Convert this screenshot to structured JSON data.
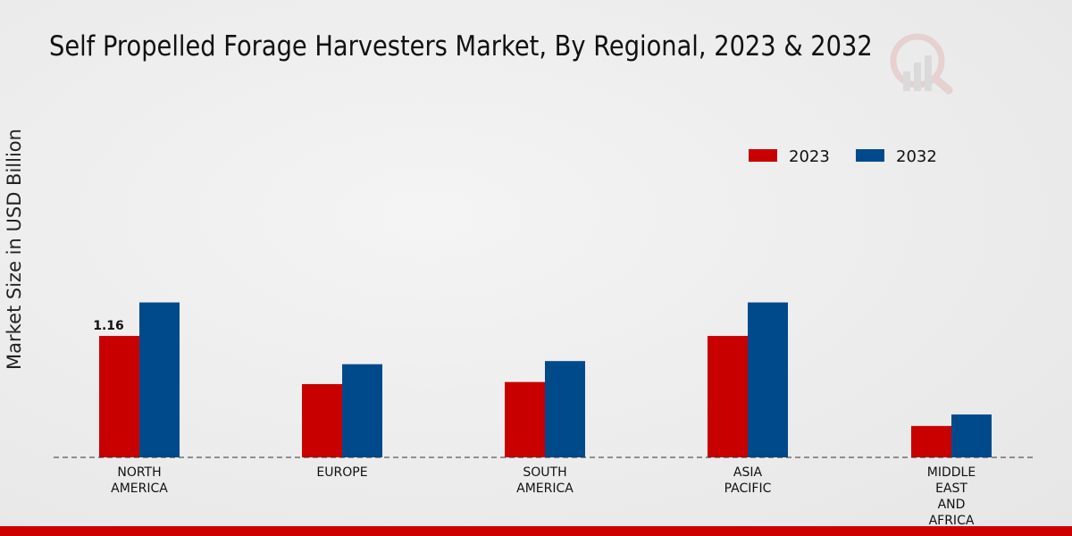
{
  "chart_data": {
    "type": "bar",
    "title": "Self Propelled Forage Harvesters Market, By Regional, 2023 & 2032",
    "xlabel": "",
    "ylabel": "Market Size in USD Billion",
    "categories": [
      [
        "NORTH",
        "AMERICA"
      ],
      [
        "EUROPE"
      ],
      [
        "SOUTH",
        "AMERICA"
      ],
      [
        "ASIA",
        "PACIFIC"
      ],
      [
        "MIDDLE",
        "EAST",
        "AND",
        "AFRICA"
      ]
    ],
    "series": [
      {
        "name": "2023",
        "color": "#c80000",
        "values": [
          1.16,
          0.7,
          0.72,
          1.16,
          0.3
        ]
      },
      {
        "name": "2032",
        "color": "#004a8c",
        "values": [
          1.48,
          0.89,
          0.92,
          1.48,
          0.41
        ]
      }
    ],
    "data_labels": [
      {
        "series": 0,
        "index": 0,
        "text": "1.16"
      }
    ],
    "ylim": [
      0,
      3.4
    ],
    "grid": false,
    "legend": "top-right"
  }
}
